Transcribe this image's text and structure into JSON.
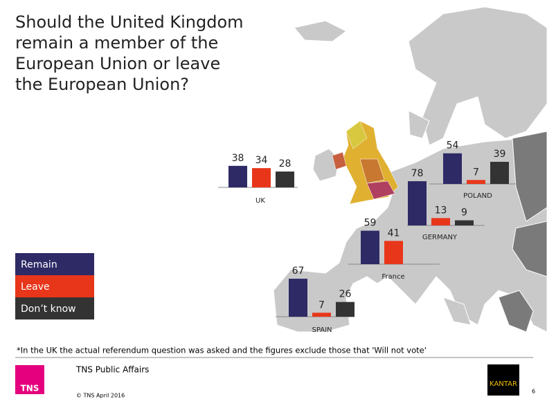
{
  "title": [
    "Should the United Kingdom",
    "remain a member of the",
    "European Union or leave",
    "the European Union?"
  ],
  "legend": [
    {
      "name": "Remain",
      "color": "#2e2a66"
    },
    {
      "name": "Leave",
      "color": "#e8361a"
    },
    {
      "name": "Don’t know",
      "color": "#333333"
    }
  ],
  "chart_data": [
    {
      "type": "bar",
      "title": "UK",
      "values": [
        38,
        34,
        28
      ]
    },
    {
      "type": "bar",
      "title": "POLAND",
      "values": [
        54,
        7,
        39
      ]
    },
    {
      "type": "bar",
      "title": "GERMANY",
      "values": [
        78,
        13,
        9
      ]
    },
    {
      "type": "bar",
      "title": "France",
      "values": [
        59,
        41
      ]
    },
    {
      "type": "bar",
      "title": "SPAIN",
      "values": [
        67,
        7,
        26
      ]
    }
  ],
  "footnote": "*In the UK the actual referendum question was asked and the figures exclude those that 'Will not vote'",
  "footer": {
    "logo": "TNS",
    "org": "TNS Public Affairs",
    "copyright": "© TNS April 2016",
    "brand": "KANTAR",
    "page": "6"
  }
}
